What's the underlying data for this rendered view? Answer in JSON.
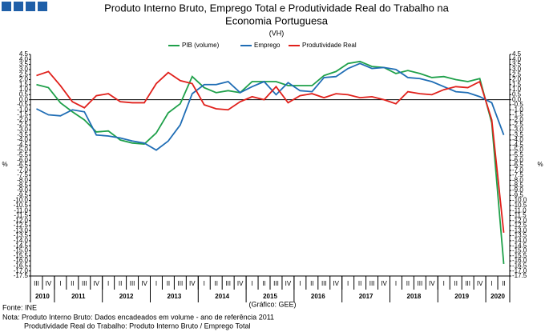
{
  "chart_data": {
    "type": "line",
    "title": "Produto Interno Bruto, Emprego Total e Produtividade Real do Trabalho na",
    "title2": "Economia Portuguesa",
    "subtitle": "(VH)",
    "ylabel": "%",
    "y2label": "%",
    "source_note": "(Gráfico: GEE)",
    "footnotes": [
      "Fonte: INE",
      "Nota: Produto Interno Bruto: Dados encadeados em volume - ano de referência 2011",
      "Produtividade Real do Trabalho: Produto Interno Bruto / Emprego Total"
    ],
    "categories": [
      "III",
      "IV",
      "I",
      "II",
      "III",
      "IV",
      "I",
      "II",
      "III",
      "IV",
      "I",
      "II",
      "III",
      "IV",
      "I",
      "II",
      "III",
      "IV",
      "I",
      "II",
      "III",
      "IV",
      "I",
      "II",
      "III",
      "IV",
      "I",
      "II",
      "III",
      "IV",
      "I",
      "II",
      "III",
      "IV",
      "I",
      "II",
      "III",
      "IV",
      "I",
      "II"
    ],
    "years": [
      "2010",
      "2011",
      "2012",
      "2013",
      "2014",
      "2015",
      "2016",
      "2017",
      "2018",
      "2019",
      "2020"
    ],
    "series": [
      {
        "name": "PIB (volume)",
        "color": "#1fa04a",
        "values": [
          1.5,
          1.2,
          -0.3,
          -1.2,
          -2.0,
          -3.2,
          -3.1,
          -4.0,
          -4.3,
          -4.4,
          -3.3,
          -1.3,
          -0.4,
          2.3,
          1.2,
          0.7,
          0.9,
          0.7,
          1.8,
          1.8,
          1.8,
          1.4,
          1.4,
          1.4,
          2.4,
          2.8,
          3.6,
          3.8,
          3.3,
          3.2,
          2.6,
          2.9,
          2.6,
          2.2,
          2.3,
          2.0,
          1.8,
          2.1,
          -2.3,
          -16.3
        ]
      },
      {
        "name": "Emprego",
        "color": "#1f6db5",
        "values": [
          -0.9,
          -1.5,
          -1.6,
          -1.0,
          -1.2,
          -3.5,
          -3.6,
          -3.8,
          -4.1,
          -4.3,
          -5.0,
          -4.1,
          -2.5,
          0.6,
          1.5,
          1.5,
          1.8,
          0.7,
          1.3,
          1.8,
          0.5,
          1.7,
          0.9,
          0.8,
          2.2,
          2.3,
          3.1,
          3.6,
          3.1,
          3.2,
          3.0,
          2.2,
          2.1,
          1.8,
          1.3,
          0.8,
          0.7,
          0.3,
          -0.3,
          -3.5
        ]
      },
      {
        "name": "Produtividade Real",
        "color": "#e0201b",
        "values": [
          2.4,
          2.8,
          1.4,
          -0.2,
          -0.8,
          0.4,
          0.6,
          -0.2,
          -0.3,
          -0.3,
          1.6,
          2.7,
          1.9,
          1.6,
          -0.5,
          -0.9,
          -1.0,
          -0.2,
          0.3,
          0.0,
          1.3,
          -0.3,
          0.4,
          0.6,
          0.2,
          0.6,
          0.5,
          0.2,
          0.3,
          0.0,
          -0.4,
          0.8,
          0.6,
          0.5,
          1.0,
          1.3,
          1.2,
          1.8,
          -2.0,
          -13.2
        ]
      }
    ],
    "ylim": [
      -17.5,
      4.5
    ],
    "yticks": [
      4.5,
      {
        "value": 4,
        "label": "4.0"
      },
      3.5,
      {
        "value": 3,
        "label": "3.0"
      },
      2.5,
      {
        "value": 2,
        "label": "2.0"
      },
      1.5,
      {
        "value": 1,
        "label": "1.0"
      },
      0.5,
      {
        "value": 0,
        "label": "0.0"
      },
      -0.5,
      {
        "value": -1,
        "label": "-1.0"
      },
      -1.5,
      {
        "value": -2,
        "label": "-2.0"
      },
      -2.5,
      {
        "value": -3,
        "label": "-3.0"
      },
      -3.5,
      {
        "value": -4,
        "label": "-4.0"
      },
      -4.5,
      {
        "value": -5,
        "label": "-5.0"
      },
      -5.5,
      {
        "value": -6,
        "label": "-6.0"
      },
      -6.5,
      {
        "value": -7,
        "label": "-7.0"
      },
      -7.5,
      {
        "value": -8,
        "label": "-8.0"
      },
      -8.5,
      {
        "value": -9,
        "label": "-9.0"
      },
      -9.5,
      {
        "value": -10,
        "label": "-10.0"
      },
      -10.5,
      {
        "value": -11,
        "label": "-11.0"
      },
      -11.5,
      {
        "value": -12,
        "label": "-12.0"
      },
      -12.5,
      {
        "value": -13,
        "label": "-13.0"
      },
      -13.5,
      {
        "value": -14,
        "label": "-14.0"
      },
      -14.5,
      {
        "value": -15,
        "label": "-15.0"
      },
      -15.5,
      {
        "value": -16,
        "label": "-16.0"
      },
      -16.5,
      {
        "value": -17,
        "label": "-17.0"
      },
      -17.5
    ],
    "legend": "top"
  }
}
